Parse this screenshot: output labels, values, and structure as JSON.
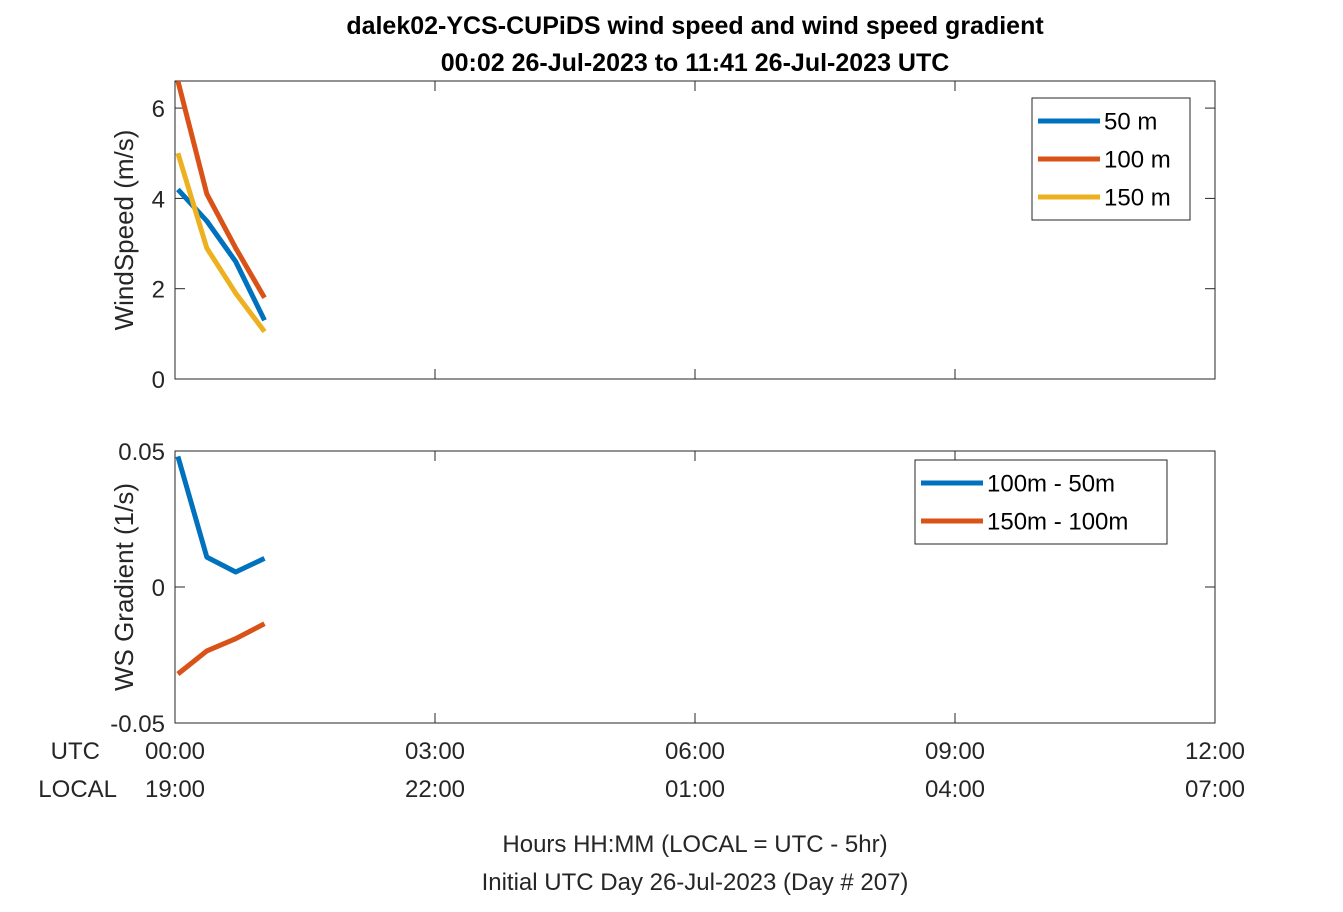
{
  "title": {
    "line1": "dalek02-YCS-CUPiDS  wind speed and wind speed gradient",
    "line2": "00:02 26-Jul-2023 to 11:41 26-Jul-2023  UTC"
  },
  "x_axis": {
    "row_labels": {
      "utc": "UTC",
      "local": "LOCAL"
    },
    "ticks": [
      {
        "hours": 0,
        "utc": "00:00",
        "local": "19:00"
      },
      {
        "hours": 3,
        "utc": "03:00",
        "local": "22:00"
      },
      {
        "hours": 6,
        "utc": "06:00",
        "local": "01:00"
      },
      {
        "hours": 9,
        "utc": "09:00",
        "local": "04:00"
      },
      {
        "hours": 12,
        "utc": "12:00",
        "local": "07:00"
      }
    ],
    "xlabel_line1": "Hours HH:MM  (LOCAL = UTC - 5hr)",
    "xlabel_line2": "Initial UTC Day 26-Jul-2023 (Day # 207)"
  },
  "chart_data": [
    {
      "type": "line",
      "ylabel": "WindSpeed (m/s)",
      "xlim": [
        0,
        12
      ],
      "ylim": [
        0,
        6.6
      ],
      "yticks": [
        0,
        2,
        4,
        6
      ],
      "yticklabels": [
        "0",
        "2",
        "4",
        "6"
      ],
      "legend_position": "top-right",
      "series": [
        {
          "name": "50 m",
          "color": "#0072BD",
          "x": [
            0.033,
            0.367,
            0.7,
            1.033
          ],
          "y": [
            4.2,
            3.5,
            2.6,
            1.3
          ]
        },
        {
          "name": "100 m",
          "color": "#D95319",
          "x": [
            0.033,
            0.367,
            0.7,
            1.033
          ],
          "y": [
            6.6,
            4.1,
            2.9,
            1.8
          ]
        },
        {
          "name": "150 m",
          "color": "#EDB120",
          "x": [
            0.033,
            0.367,
            0.7,
            1.033
          ],
          "y": [
            5.0,
            2.9,
            1.9,
            1.05
          ]
        }
      ]
    },
    {
      "type": "line",
      "ylabel": "WS Gradient (1/s)",
      "xlim": [
        0,
        12
      ],
      "ylim": [
        -0.05,
        0.05
      ],
      "yticks": [
        -0.05,
        0,
        0.05
      ],
      "yticklabels": [
        "-0.05",
        "0",
        "0.05"
      ],
      "legend_position": "top-right",
      "series": [
        {
          "name": "100m - 50m",
          "color": "#0072BD",
          "x": [
            0.033,
            0.367,
            0.7,
            1.033
          ],
          "y": [
            0.048,
            0.011,
            0.0055,
            0.0105
          ]
        },
        {
          "name": "150m - 100m",
          "color": "#D95319",
          "x": [
            0.033,
            0.367,
            0.7,
            1.033
          ],
          "y": [
            -0.032,
            -0.0235,
            -0.019,
            -0.0135
          ]
        }
      ]
    }
  ]
}
